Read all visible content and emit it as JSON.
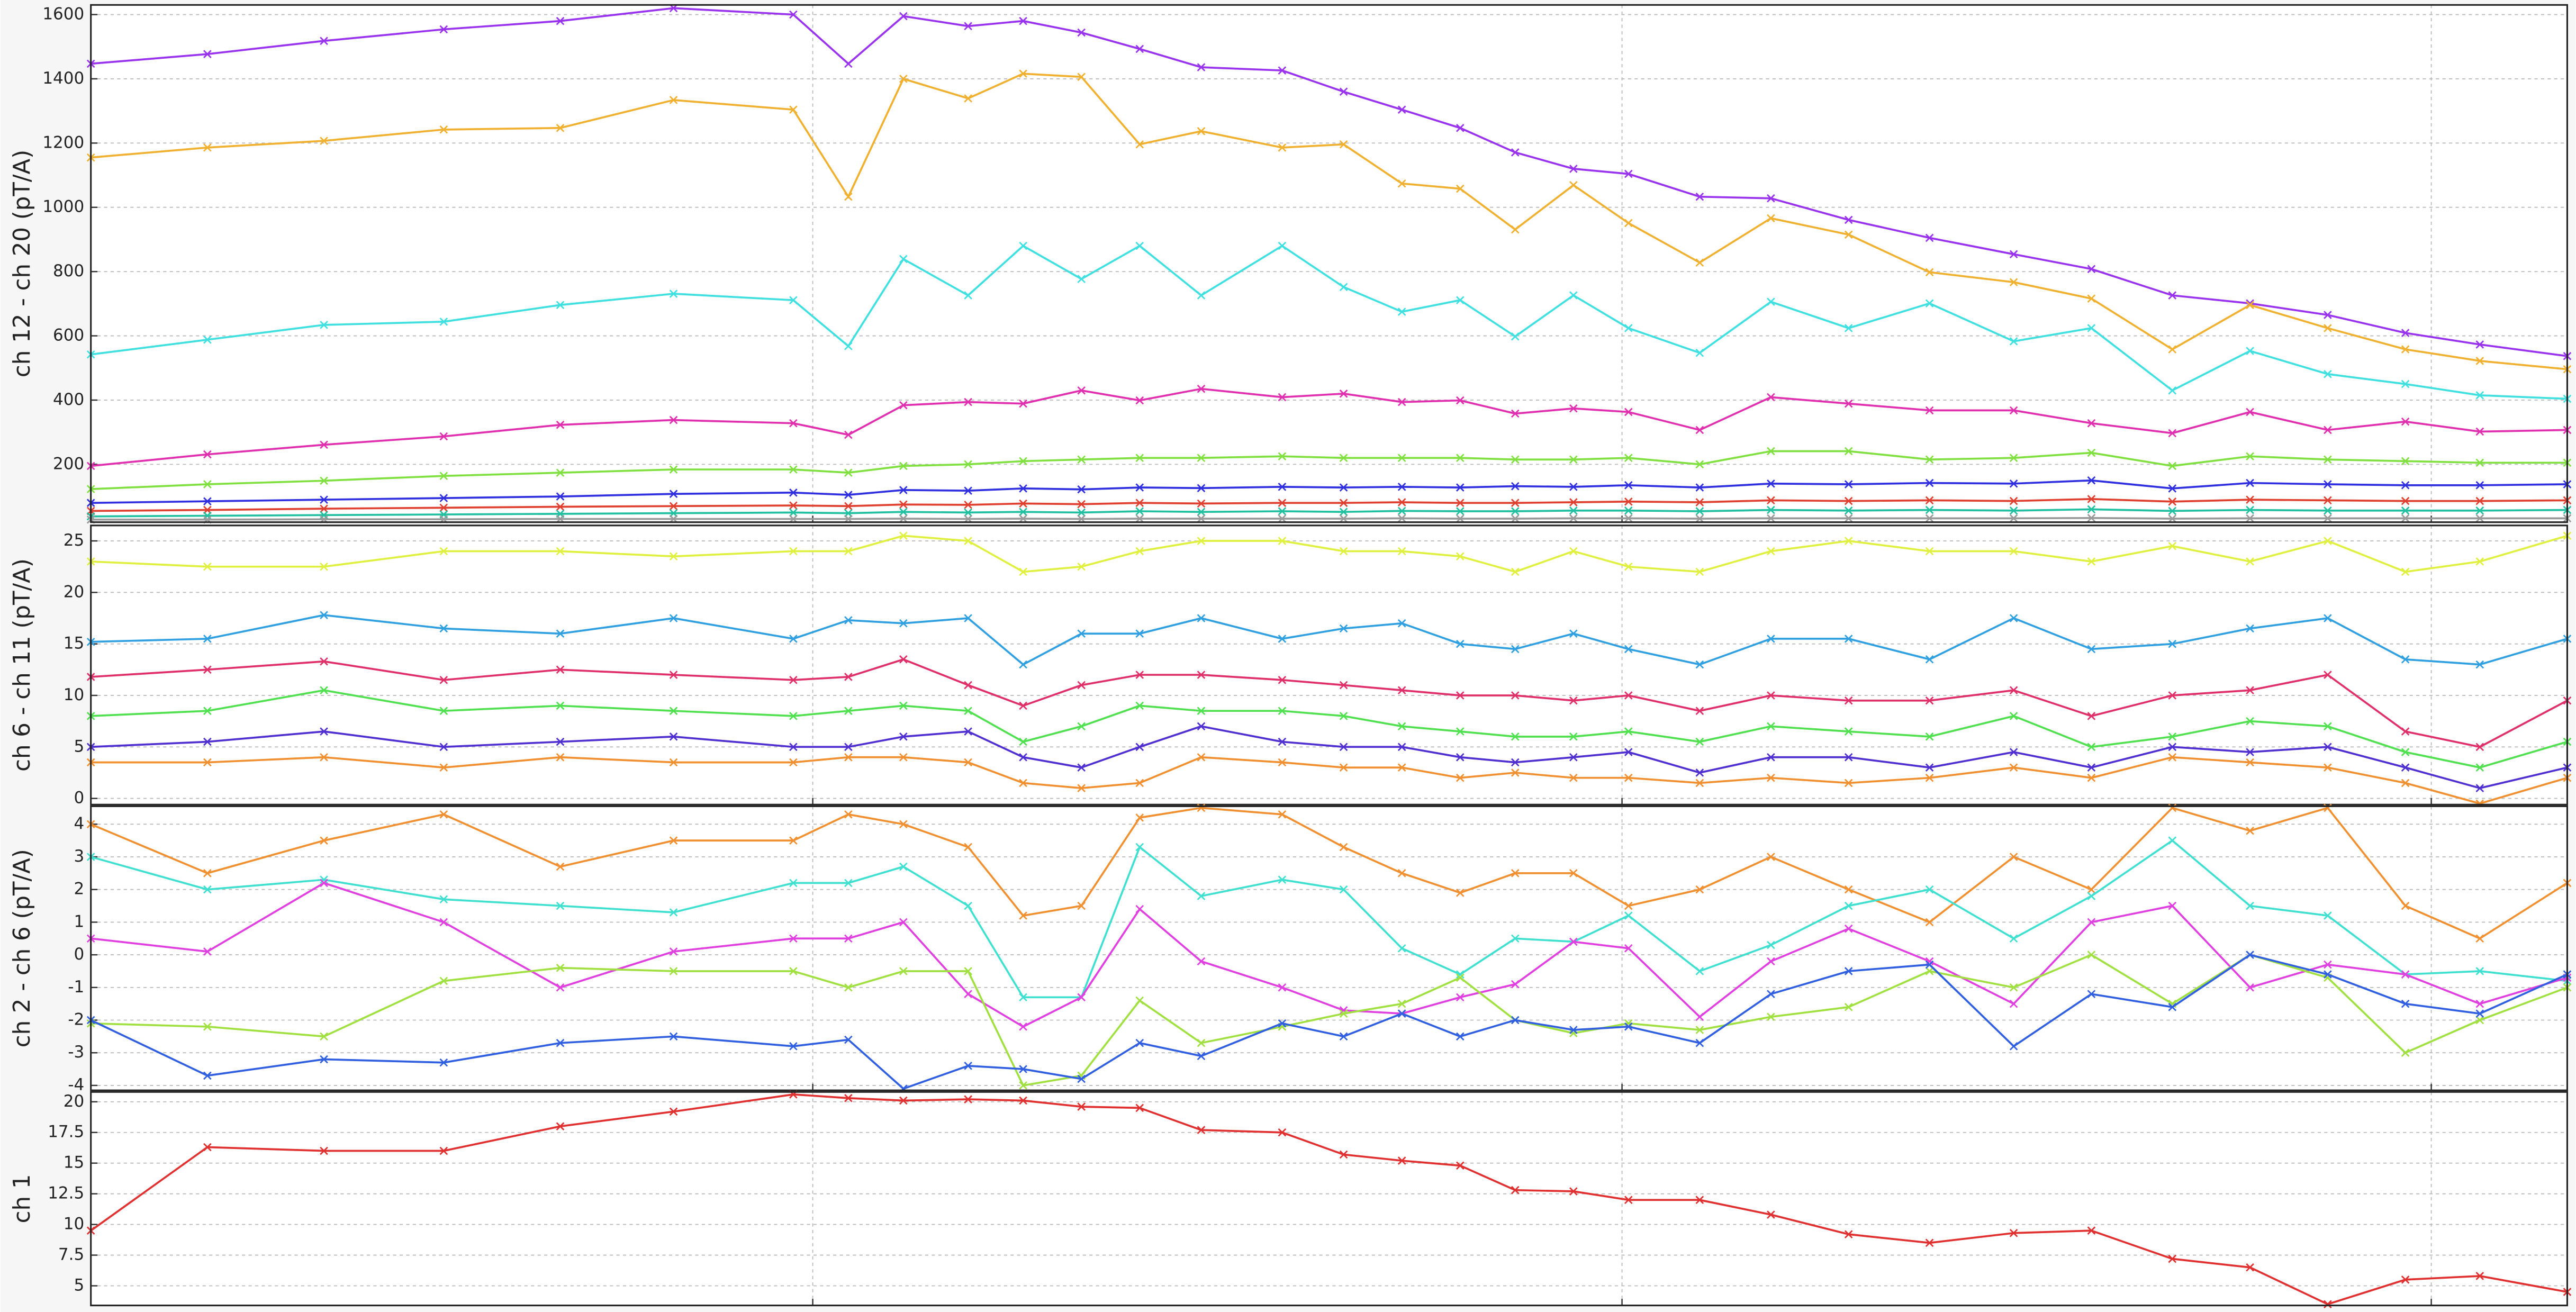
{
  "chart_data": [
    {
      "type": "line",
      "ylabel": "ch 12 - ch 20 (pT/A)",
      "x": [
        27,
        63,
        99,
        136,
        172,
        207,
        244,
        261,
        278,
        298,
        315,
        333,
        351,
        370,
        395,
        414,
        432,
        450,
        467,
        485,
        502,
        524,
        546,
        570,
        595,
        621,
        645,
        670,
        694,
        718,
        742,
        765,
        792
      ],
      "xlim": [
        27,
        792
      ],
      "xticks": [
        250,
        500,
        750
      ],
      "ylim": [
        20,
        1630
      ],
      "yticks": [
        200,
        400,
        600,
        800,
        1000,
        1200,
        1400,
        1600
      ],
      "grid": true,
      "series": [
        {
          "color": "#9933ee",
          "values": [
            1447,
            1477,
            1518,
            1554,
            1580,
            1620,
            1600,
            1447,
            1595,
            1564,
            1580,
            1544,
            1493,
            1436,
            1426,
            1360,
            1304,
            1247,
            1171,
            1120,
            1104,
            1033,
            1028,
            961,
            905,
            854,
            808,
            726,
            701,
            665,
            609,
            573,
            537
          ]
        },
        {
          "color": "#f0b030",
          "values": [
            1155,
            1186,
            1207,
            1242,
            1247,
            1334,
            1304,
            1033,
            1400,
            1339,
            1416,
            1406,
            1196,
            1237,
            1186,
            1196,
            1074,
            1058,
            931,
            1069,
            951,
            828,
            966,
            915,
            798,
            767,
            716,
            558,
            696,
            624,
            558,
            522,
            496
          ]
        },
        {
          "color": "#40e0e0",
          "values": [
            542,
            588,
            634,
            644,
            696,
            731,
            711,
            568,
            839,
            726,
            880,
            777,
            880,
            726,
            880,
            752,
            675,
            711,
            598,
            726,
            624,
            547,
            706,
            624,
            701,
            583,
            624,
            430,
            553,
            481,
            450,
            415,
            404
          ]
        },
        {
          "color": "#e030b0",
          "values": [
            195,
            231,
            261,
            287,
            323,
            338,
            328,
            292,
            384,
            394,
            389,
            430,
            399,
            435,
            409,
            420,
            394,
            399,
            358,
            374,
            363,
            307,
            409,
            389,
            368,
            368,
            328,
            297,
            363,
            307,
            333,
            302,
            307
          ]
        },
        {
          "color": "#80e040",
          "values": [
            123,
            138,
            149,
            164,
            174,
            184,
            184,
            174,
            195,
            200,
            210,
            215,
            220,
            220,
            225,
            220,
            220,
            220,
            215,
            215,
            220,
            200,
            241,
            241,
            215,
            220,
            236,
            195,
            225,
            215,
            210,
            205,
            205
          ]
        },
        {
          "color": "#3030e0",
          "values": [
            80,
            85,
            90,
            95,
            100,
            108,
            112,
            105,
            120,
            118,
            125,
            122,
            128,
            126,
            130,
            128,
            130,
            128,
            132,
            130,
            135,
            128,
            140,
            138,
            142,
            140,
            150,
            125,
            142,
            138,
            135,
            135,
            138
          ]
        },
        {
          "color": "#e04030",
          "values": [
            55,
            58,
            62,
            65,
            68,
            70,
            72,
            70,
            75,
            74,
            78,
            76,
            80,
            78,
            80,
            80,
            82,
            80,
            80,
            82,
            84,
            82,
            88,
            86,
            88,
            86,
            92,
            84,
            90,
            88,
            86,
            86,
            88
          ]
        },
        {
          "color": "#20c0a0",
          "values": [
            38,
            40,
            42,
            44,
            46,
            48,
            50,
            48,
            52,
            50,
            52,
            50,
            54,
            52,
            54,
            52,
            55,
            54,
            54,
            56,
            56,
            54,
            58,
            56,
            58,
            56,
            60,
            55,
            58,
            56,
            56,
            56,
            58
          ]
        },
        {
          "color": "#999999",
          "values": [
            28,
            28,
            29,
            29,
            30,
            30,
            30,
            30,
            31,
            30,
            31,
            30,
            31,
            31,
            31,
            31,
            32,
            31,
            31,
            32,
            32,
            31,
            32,
            32,
            32,
            32,
            33,
            31,
            32,
            32,
            32,
            32,
            32
          ]
        }
      ]
    },
    {
      "type": "line",
      "ylabel": "ch 6 - ch 11 (pT/A)",
      "x": [
        27,
        63,
        99,
        136,
        172,
        207,
        244,
        261,
        278,
        298,
        315,
        333,
        351,
        370,
        395,
        414,
        432,
        450,
        467,
        485,
        502,
        524,
        546,
        570,
        595,
        621,
        645,
        670,
        694,
        718,
        742,
        765,
        792
      ],
      "xlim": [
        27,
        792
      ],
      "xticks": [
        250,
        500,
        750
      ],
      "ylim": [
        -0.6,
        26.5
      ],
      "yticks": [
        0,
        5,
        10,
        15,
        20,
        25
      ],
      "grid": true,
      "series": [
        {
          "color": "#e0f040",
          "values": [
            23,
            22.5,
            22.5,
            24,
            24,
            23.5,
            24,
            24,
            25.5,
            25,
            22,
            22.5,
            24,
            25,
            25,
            24,
            24,
            23.5,
            22,
            24,
            22.5,
            22,
            24,
            25,
            24,
            24,
            23,
            24.5,
            23,
            25,
            22,
            23,
            25.5
          ]
        },
        {
          "color": "#30a0e0",
          "values": [
            15.2,
            15.5,
            17.8,
            16.5,
            16,
            17.5,
            15.5,
            17.3,
            17,
            17.5,
            13,
            16,
            16,
            17.5,
            15.5,
            16.5,
            17,
            15,
            14.5,
            16,
            14.5,
            13,
            15.5,
            15.5,
            13.5,
            17.5,
            14.5,
            15,
            16.5,
            17.5,
            13.5,
            13,
            15.5
          ]
        },
        {
          "color": "#e0306a",
          "values": [
            11.8,
            12.5,
            13.3,
            11.5,
            12.5,
            12,
            11.5,
            11.8,
            13.5,
            11,
            9,
            11,
            12,
            12,
            11.5,
            11,
            10.5,
            10,
            10,
            9.5,
            10,
            8.5,
            10,
            9.5,
            9.5,
            10.5,
            8,
            10,
            10.5,
            12,
            6.5,
            5,
            9.5
          ]
        },
        {
          "color": "#50e050",
          "values": [
            8,
            8.5,
            10.5,
            8.5,
            9,
            8.5,
            8,
            8.5,
            9,
            8.5,
            5.5,
            7,
            9,
            8.5,
            8.5,
            8,
            7,
            6.5,
            6,
            6,
            6.5,
            5.5,
            7,
            6.5,
            6,
            8,
            5,
            6,
            7.5,
            7,
            4.5,
            3,
            5.5
          ]
        },
        {
          "color": "#5030d0",
          "values": [
            5,
            5.5,
            6.5,
            5,
            5.5,
            6,
            5,
            5,
            6,
            6.5,
            4,
            3,
            5,
            7,
            5.5,
            5,
            5,
            4,
            3.5,
            4,
            4.5,
            2.5,
            4,
            4,
            3,
            4.5,
            3,
            5,
            4.5,
            5,
            3,
            1,
            3
          ]
        },
        {
          "color": "#f09030",
          "values": [
            3.5,
            3.5,
            4,
            3,
            4,
            3.5,
            3.5,
            4,
            4,
            3.5,
            1.5,
            1,
            1.5,
            4,
            3.5,
            3,
            3,
            2,
            2.5,
            2,
            2,
            1.5,
            2,
            1.5,
            2,
            3,
            2,
            4,
            3.5,
            3,
            1.5,
            -0.5,
            2
          ]
        }
      ]
    },
    {
      "type": "line",
      "ylabel": "ch 2 - ch 6 (pT/A)",
      "x": [
        27,
        63,
        99,
        136,
        172,
        207,
        244,
        261,
        278,
        298,
        315,
        333,
        351,
        370,
        395,
        414,
        432,
        450,
        467,
        485,
        502,
        524,
        546,
        570,
        595,
        621,
        645,
        670,
        694,
        718,
        742,
        765,
        792
      ],
      "xlim": [
        27,
        792
      ],
      "xticks": [
        250,
        500,
        750
      ],
      "ylim": [
        -4.15,
        4.55
      ],
      "yticks": [
        -4,
        -3,
        -2,
        -1,
        0,
        1,
        2,
        3,
        4
      ],
      "grid": true,
      "series": [
        {
          "color": "#f09030",
          "values": [
            4,
            2.5,
            3.5,
            4.3,
            2.7,
            3.5,
            3.5,
            4.3,
            4,
            3.3,
            1.2,
            1.5,
            4.2,
            4.5,
            4.3,
            3.3,
            2.5,
            1.9,
            2.5,
            2.5,
            1.5,
            2,
            3,
            2,
            1,
            3,
            2,
            4.5,
            3.8,
            4.5,
            1.5,
            0.5,
            2.2
          ]
        },
        {
          "color": "#40e0d0",
          "values": [
            3,
            2,
            2.3,
            1.7,
            1.5,
            1.3,
            2.2,
            2.2,
            2.7,
            1.5,
            -1.3,
            -1.3,
            3.3,
            1.8,
            2.3,
            2,
            0.2,
            -0.6,
            0.5,
            0.4,
            1.2,
            -0.5,
            0.3,
            1.5,
            2,
            0.5,
            1.8,
            3.5,
            1.5,
            1.2,
            -0.6,
            -0.5,
            -0.8
          ]
        },
        {
          "color": "#e040e0",
          "values": [
            0.5,
            0.1,
            2.2,
            1,
            -1,
            0.1,
            0.5,
            0.5,
            1,
            -1.2,
            -2.2,
            -1.3,
            1.4,
            -0.2,
            -1,
            -1.7,
            -1.8,
            -1.3,
            -0.9,
            0.4,
            0.2,
            -1.9,
            -0.2,
            0.8,
            -0.2,
            -1.5,
            1,
            1.5,
            -1,
            -0.3,
            -0.6,
            -1.5,
            -0.7
          ]
        },
        {
          "color": "#a0e040",
          "values": [
            -2.1,
            -2.2,
            -2.5,
            -0.8,
            -0.4,
            -0.5,
            -0.5,
            -1,
            -0.5,
            -0.5,
            -4,
            -3.7,
            -1.4,
            -2.7,
            -2.2,
            -1.8,
            -1.5,
            -0.7,
            -2,
            -2.4,
            -2.1,
            -2.3,
            -1.9,
            -1.6,
            -0.5,
            -1,
            0,
            -1.5,
            0,
            -0.7,
            -3,
            -2,
            -1
          ]
        },
        {
          "color": "#3060e0",
          "values": [
            -2,
            -3.7,
            -3.2,
            -3.3,
            -2.7,
            -2.5,
            -2.8,
            -2.6,
            -4.1,
            -3.4,
            -3.5,
            -3.8,
            -2.7,
            -3.1,
            -2.1,
            -2.5,
            -1.8,
            -2.5,
            -2,
            -2.3,
            -2.2,
            -2.7,
            -1.2,
            -0.5,
            -0.3,
            -2.8,
            -1.2,
            -1.6,
            0,
            -0.6,
            -1.5,
            -1.8,
            -0.6
          ]
        }
      ]
    },
    {
      "type": "line",
      "ylabel": "ch 1",
      "x": [
        27,
        63,
        99,
        136,
        172,
        207,
        244,
        261,
        278,
        298,
        315,
        333,
        351,
        370,
        395,
        414,
        432,
        450,
        467,
        485,
        502,
        524,
        546,
        570,
        595,
        621,
        645,
        670,
        694,
        718,
        742,
        765,
        792
      ],
      "xlim": [
        27,
        792
      ],
      "xticks": [
        250,
        500,
        750
      ],
      "ylim": [
        3.4,
        20.8
      ],
      "yticks": [
        5,
        7.5,
        10,
        12.5,
        15,
        17.5,
        20
      ],
      "grid": true,
      "series": [
        {
          "color": "#e03030",
          "values": [
            9.5,
            16.3,
            16,
            16,
            18,
            19.2,
            20.6,
            20.3,
            20.1,
            20.2,
            20.1,
            19.6,
            19.5,
            17.7,
            17.5,
            15.7,
            15.2,
            14.8,
            12.8,
            12.7,
            12,
            12,
            10.8,
            9.2,
            8.5,
            9.3,
            9.5,
            7.2,
            6.5,
            3.5,
            5.5,
            5.8,
            4.5
          ]
        }
      ]
    }
  ]
}
